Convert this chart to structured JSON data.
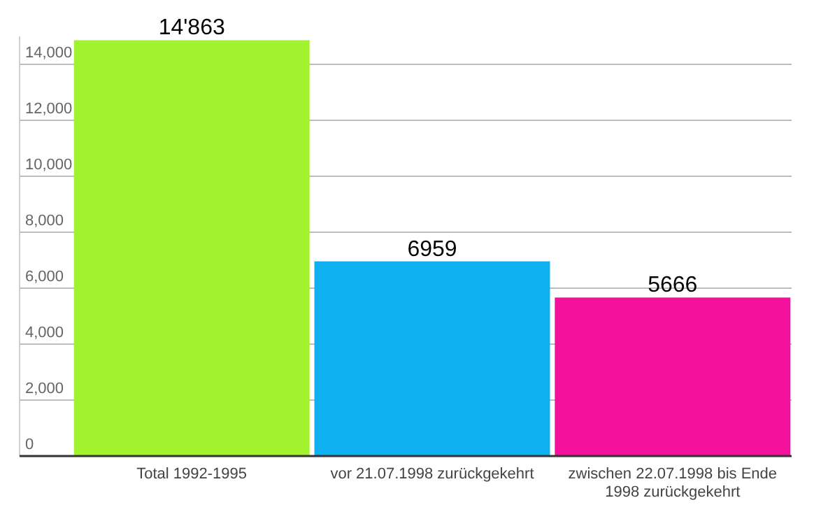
{
  "chart_data": {
    "type": "bar",
    "categories": [
      "Total 1992-1995",
      "vor 21.07.1998 zurückgekehrt",
      "zwischen 22.07.1998 bis Ende 1998 zurückgekehrt"
    ],
    "values": [
      14863,
      6959,
      5666
    ],
    "colors": [
      "#a2f22f",
      "#0fb0ef",
      "#f4119b"
    ],
    "value_labels": [
      "14'863",
      "6959",
      "5666"
    ],
    "yticks": [
      0,
      {
        "value": 2000,
        "label": "2,000"
      },
      {
        "value": 4000,
        "label": "4,000"
      },
      {
        "value": 6000,
        "label": "6,000"
      },
      {
        "value": 8000,
        "label": "8,000"
      },
      {
        "value": 10000,
        "label": "10,000"
      },
      {
        "value": 12000,
        "label": "12,000"
      },
      {
        "value": 14000,
        "label": "14,000"
      }
    ],
    "ylim": [
      0,
      15000
    ],
    "grid": "y"
  }
}
